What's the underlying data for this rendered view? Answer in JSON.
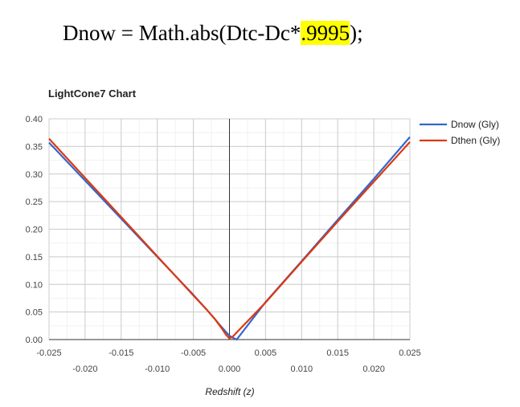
{
  "formula": {
    "prefix": "Dnow = Math.abs(Dtc-Dc*",
    "highlight": ".9995",
    "suffix": ");"
  },
  "chart_data": {
    "type": "line",
    "title": "LightCone7 Chart",
    "xlabel": "Redshift (z)",
    "ylabel": "",
    "xlim": [
      -0.025,
      0.025
    ],
    "ylim": [
      0,
      0.4
    ],
    "grid": true,
    "legend": "top-right",
    "y_ticks": [
      "0.00",
      "0.05",
      "0.10",
      "0.15",
      "0.20",
      "0.25",
      "0.30",
      "0.35",
      "0.40"
    ],
    "x_ticks_upper": [
      "-0.025",
      "-0.015",
      "-0.005",
      "0.005",
      "0.015",
      "0.025"
    ],
    "x_ticks_lower": [
      "-0.020",
      "-0.010",
      "0.000",
      "0.010",
      "0.020"
    ],
    "series": [
      {
        "name": "Dnow (Gly)",
        "color": "#3366cc",
        "x": [
          -0.025,
          -0.02,
          -0.015,
          -0.01,
          -0.005,
          -0.003,
          -0.002,
          -0.0015,
          -0.0005,
          0.0,
          0.0005,
          0.001,
          0.005,
          0.01,
          0.015,
          0.02,
          0.025
        ],
        "y": [
          0.357,
          0.288,
          0.219,
          0.15,
          0.081,
          0.052,
          0.037,
          0.029,
          0.014,
          0.007,
          0.003,
          0.0,
          0.068,
          0.142,
          0.217,
          0.291,
          0.367
        ]
      },
      {
        "name": "Dthen (Gly)",
        "color": "#dc3912",
        "x": [
          -0.025,
          -0.02,
          -0.015,
          -0.01,
          -0.005,
          -0.003,
          -0.002,
          -0.0015,
          -0.001,
          -0.0005,
          0.0,
          0.0005,
          0.001,
          0.005,
          0.01,
          0.015,
          0.02,
          0.025
        ],
        "y": [
          0.364,
          0.293,
          0.222,
          0.151,
          0.08,
          0.052,
          0.037,
          0.028,
          0.019,
          0.009,
          0.002,
          0.006,
          0.013,
          0.067,
          0.141,
          0.214,
          0.286,
          0.358
        ]
      }
    ]
  }
}
